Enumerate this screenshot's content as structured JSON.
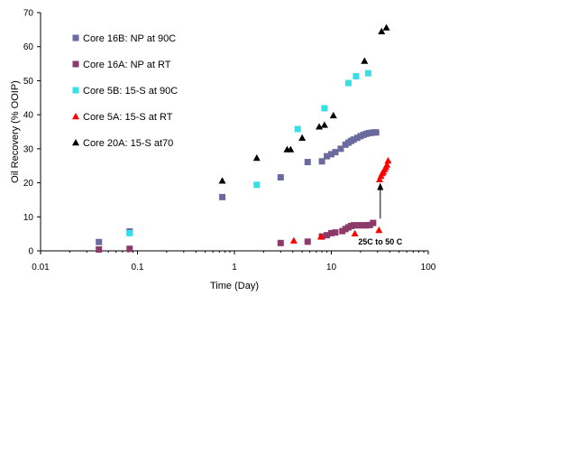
{
  "chart_data": {
    "type": "scatter",
    "xscale": "log",
    "xlim": [
      0.01,
      100
    ],
    "ylim": [
      0,
      70
    ],
    "xticks": [
      "0.01",
      "0.1",
      "1",
      "10",
      "100"
    ],
    "yticks": [
      "0",
      "10",
      "20",
      "30",
      "40",
      "50",
      "60",
      "70"
    ],
    "xlabel": "Time (Day)",
    "ylabel": "Oil Recovery (% OOIP)",
    "grid": false,
    "legend_position": "top-left",
    "annotation": {
      "text": "25C  to 50 C",
      "arrow_from": [
        32,
        9.5
      ],
      "arrow_to": [
        32,
        20
      ]
    },
    "series": [
      {
        "name": "Core 16B: NP at 90C",
        "marker": "square",
        "color": "#6a6a9e",
        "points": [
          [
            0.04,
            2.6
          ],
          [
            0.083,
            5.7
          ],
          [
            0.75,
            15.8
          ],
          [
            3,
            21.6
          ],
          [
            5.7,
            26.1
          ],
          [
            8,
            26.3
          ],
          [
            9,
            27.8
          ],
          [
            10,
            28.4
          ],
          [
            11,
            29.0
          ],
          [
            12.5,
            30.0
          ],
          [
            14,
            31.2
          ],
          [
            15,
            31.8
          ],
          [
            16,
            32.3
          ],
          [
            17,
            32.7
          ],
          [
            18.5,
            33.2
          ],
          [
            20,
            33.7
          ],
          [
            21.5,
            34.1
          ],
          [
            23,
            34.4
          ],
          [
            24.5,
            34.6
          ],
          [
            26,
            34.7
          ],
          [
            27.5,
            34.8
          ],
          [
            29,
            34.8
          ]
        ]
      },
      {
        "name": "Core 16A: NP at RT",
        "marker": "square",
        "color": "#8b3a6a",
        "points": [
          [
            0.04,
            0.4
          ],
          [
            0.083,
            0.6
          ],
          [
            3,
            2.3
          ],
          [
            5.7,
            2.7
          ],
          [
            8,
            4.2
          ],
          [
            9,
            4.6
          ],
          [
            10,
            5.2
          ],
          [
            11,
            5.4
          ],
          [
            13,
            5.8
          ],
          [
            14,
            6.4
          ],
          [
            15,
            6.9
          ],
          [
            16,
            7.3
          ],
          [
            17,
            7.5
          ],
          [
            18.5,
            7.5
          ],
          [
            20,
            7.5
          ],
          [
            21.5,
            7.5
          ],
          [
            23,
            7.5
          ],
          [
            25,
            7.6
          ],
          [
            27,
            8.2
          ]
        ]
      },
      {
        "name": "Core 5B: 15-S at 90C",
        "marker": "square",
        "color": "#33e0e6",
        "points": [
          [
            0.083,
            5.2
          ],
          [
            1.7,
            19.4
          ],
          [
            4.5,
            35.8
          ],
          [
            8.5,
            41.9
          ],
          [
            15,
            49.3
          ],
          [
            18,
            51.3
          ],
          [
            24,
            52.2
          ]
        ]
      },
      {
        "name": "Core 5A: 15-S at RT",
        "marker": "triangle",
        "color": "#ff0000",
        "points": [
          [
            4.1,
            3.0
          ],
          [
            7.8,
            4.2
          ],
          [
            17.5,
            5.1
          ],
          [
            31,
            6.1
          ],
          [
            31.5,
            21.0
          ],
          [
            32.5,
            22.0
          ],
          [
            33.5,
            22.8
          ],
          [
            34.5,
            23.3
          ],
          [
            35.5,
            24.0
          ],
          [
            36.5,
            24.6
          ],
          [
            37.5,
            25.3
          ],
          [
            38.5,
            26.5
          ]
        ]
      },
      {
        "name": "Core 20A: 15-S at70",
        "marker": "triangle",
        "color": "#000000",
        "points": [
          [
            0.75,
            20.6
          ],
          [
            1.7,
            27.3
          ],
          [
            3.5,
            29.8
          ],
          [
            3.8,
            29.8
          ],
          [
            5,
            33.2
          ],
          [
            7.5,
            36.5
          ],
          [
            8.5,
            37.0
          ],
          [
            10.5,
            39.8
          ],
          [
            22,
            55.8
          ],
          [
            33,
            64.5
          ],
          [
            37,
            65.6
          ]
        ]
      }
    ]
  }
}
